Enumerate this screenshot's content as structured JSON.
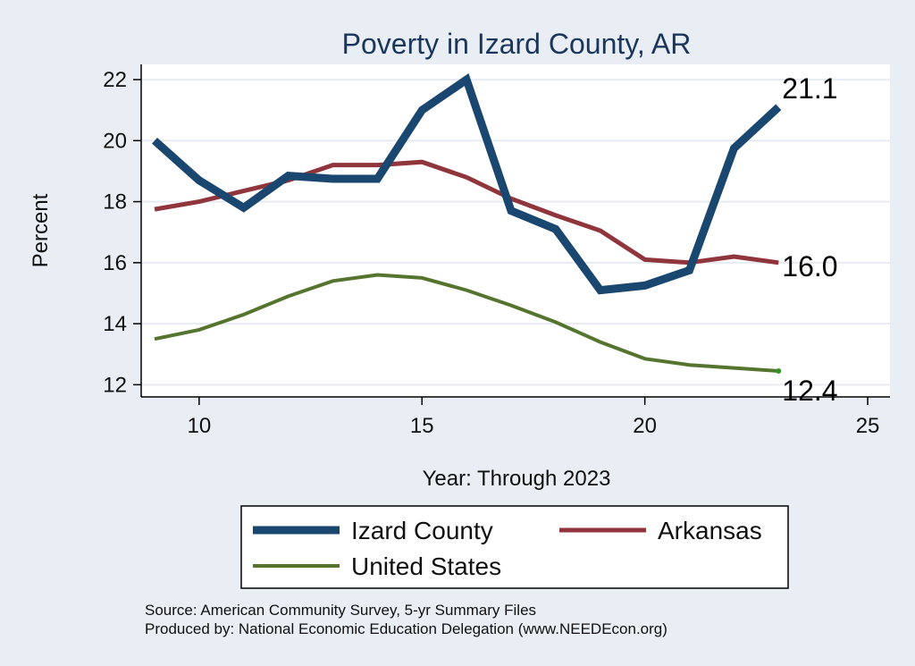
{
  "chart_data": {
    "type": "line",
    "title": "Poverty in Izard County, AR",
    "xlabel": "Year: Through 2023",
    "ylabel": "Percent",
    "xlim": [
      8.7,
      25.5
    ],
    "ylim": [
      11.6,
      22.5
    ],
    "xticks": [
      10,
      15,
      20,
      25
    ],
    "yticks": [
      12,
      14,
      16,
      18,
      20,
      22
    ],
    "grid": "horizontal",
    "legend_position": "bottom",
    "x": [
      9,
      10,
      11,
      12,
      13,
      14,
      15,
      16,
      17,
      18,
      19,
      20,
      21,
      22,
      23
    ],
    "series": [
      {
        "name": "Izard County",
        "color": "#1a476f",
        "values": [
          20.0,
          18.7,
          17.8,
          18.85,
          18.75,
          18.75,
          21.0,
          22.0,
          17.7,
          17.1,
          15.1,
          15.25,
          15.75,
          19.75,
          21.1
        ],
        "end_label": "21.1"
      },
      {
        "name": "Arkansas",
        "color": "#90353b",
        "values": [
          17.75,
          18.0,
          18.35,
          18.7,
          19.2,
          19.2,
          19.3,
          18.8,
          18.1,
          17.55,
          17.05,
          16.1,
          16.0,
          16.2,
          16.0
        ],
        "end_label": "16.0"
      },
      {
        "name": "United States",
        "color": "#55752f",
        "values": [
          13.5,
          13.8,
          14.3,
          14.9,
          15.4,
          15.6,
          15.5,
          15.1,
          14.6,
          14.05,
          13.4,
          12.85,
          12.65,
          12.55,
          12.45
        ],
        "end_label": "12.4"
      }
    ],
    "notes": [
      "Source: American Community Survey, 5-yr Summary Files",
      "Produced by: National Economic Education Delegation (www.NEEDEcon.org)"
    ]
  }
}
